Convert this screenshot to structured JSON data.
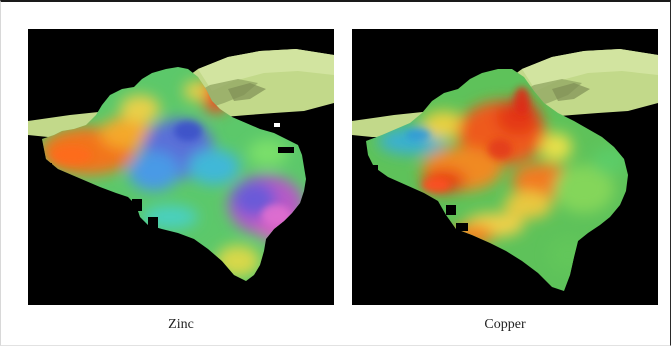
{
  "figure": {
    "panels": [
      {
        "caption": "Zinc",
        "colors": {
          "background": "#000000",
          "terrain": "#c2d98a",
          "terrain_shadow": "#93a864",
          "terrain_dark": "#7f8f55"
        }
      },
      {
        "caption": "Copper",
        "colors": {
          "background": "#000000",
          "terrain": "#c2d98a",
          "terrain_shadow": "#93a864",
          "terrain_dark": "#7f8f55"
        }
      }
    ]
  }
}
